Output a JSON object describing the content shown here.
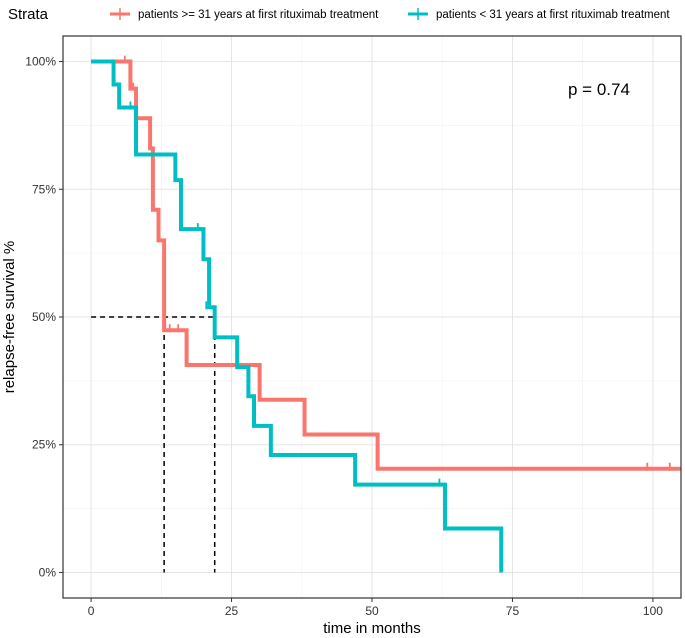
{
  "chart_data": {
    "type": "line",
    "subtype": "kaplan-meier",
    "xlabel": "time in months",
    "ylabel": "relapse-free survival %",
    "xlim": [
      -5,
      105
    ],
    "ylim": [
      -0.05,
      1.05
    ],
    "x_ticks": [
      0,
      25,
      50,
      75,
      100
    ],
    "x_tick_labels": [
      "0",
      "25",
      "50",
      "75",
      "100"
    ],
    "y_ticks": [
      0,
      0.25,
      0.5,
      0.75,
      1.0
    ],
    "y_tick_labels": [
      "0%",
      "25%",
      "50%",
      "75%",
      "100%"
    ],
    "grid": true,
    "legend": {
      "title": "Strata",
      "position": "top",
      "entries": [
        "patients >= 31 years at first rituximab treatment",
        "patients < 31 years at first rituximab treatment"
      ]
    },
    "annotation": "p = 0.74",
    "median_lines": [
      13,
      22
    ],
    "series": [
      {
        "name": "patients >= 31 years at first rituximab treatment",
        "color": "#F8766D",
        "steps": [
          [
            0,
            1.0
          ],
          [
            7,
            0.947
          ],
          [
            8,
            0.889
          ],
          [
            10.5,
            0.83
          ],
          [
            11,
            0.71
          ],
          [
            12,
            0.65
          ],
          [
            13,
            0.474
          ],
          [
            17,
            0.406
          ],
          [
            30,
            0.338
          ],
          [
            38,
            0.27
          ],
          [
            51,
            0.203
          ],
          [
            105,
            0.203
          ]
        ],
        "censored": [
          [
            6,
            1.0
          ],
          [
            7.5,
            0.947
          ],
          [
            14,
            0.474
          ],
          [
            15.5,
            0.474
          ],
          [
            99,
            0.203
          ],
          [
            103,
            0.203
          ]
        ]
      },
      {
        "name": "patients < 31 years at first rituximab treatment",
        "color": "#00BFC4",
        "steps": [
          [
            0,
            1.0
          ],
          [
            4,
            0.955
          ],
          [
            5,
            0.91
          ],
          [
            8,
            0.818
          ],
          [
            15,
            0.768
          ],
          [
            16,
            0.672
          ],
          [
            20,
            0.613
          ],
          [
            21,
            0.519
          ],
          [
            22,
            0.46
          ],
          [
            26,
            0.402
          ],
          [
            28,
            0.345
          ],
          [
            29,
            0.287
          ],
          [
            32,
            0.23
          ],
          [
            47,
            0.172
          ],
          [
            63,
            0.086
          ],
          [
            73,
            0.0
          ]
        ],
        "censored": [
          [
            7,
            0.91
          ],
          [
            19,
            0.672
          ],
          [
            20.5,
            0.519
          ],
          [
            62,
            0.172
          ]
        ]
      }
    ]
  }
}
